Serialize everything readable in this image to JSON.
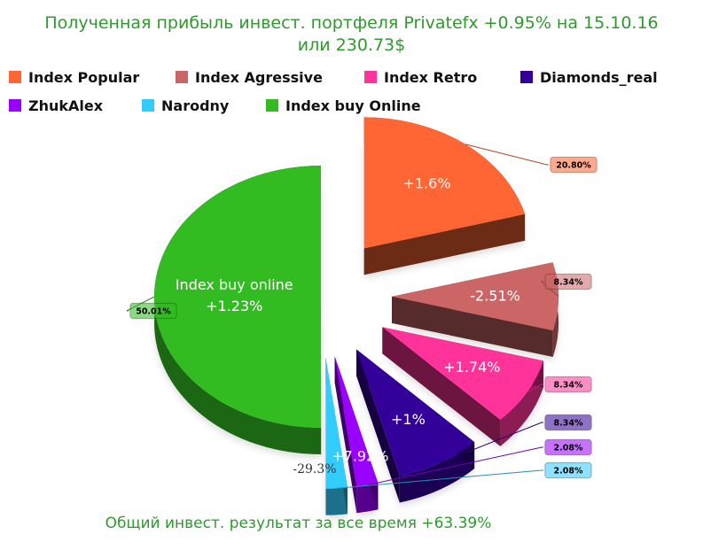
{
  "title_line1": "Полученная прибыль инвест. портфеля Privatefx +0.95% на 15.10.16",
  "title_line2": "или 230.73$",
  "footer": "Общий инвест. результат за все время +63.39%",
  "legend": [
    {
      "name": "Index Popular",
      "color": "#ff6633"
    },
    {
      "name": "Index Agressive",
      "color": "#cc6666"
    },
    {
      "name": "Index Retro",
      "color": "#ff3399"
    },
    {
      "name": "Diamonds_real",
      "color": "#330099"
    },
    {
      "name": "ZhukAlex",
      "color": "#9900ff"
    },
    {
      "name": "Narodny",
      "color": "#33ccff"
    },
    {
      "name": "Index buy Online",
      "color": "#33bb22"
    }
  ],
  "chart_data": {
    "type": "pie",
    "legend_position": "top",
    "slices": [
      {
        "name": "Index Popular",
        "share": 20.8,
        "label": "20.80%",
        "annotation": "+1.6%",
        "color": "#ff6633"
      },
      {
        "name": "Index Agressive",
        "share": 8.34,
        "label": "8.34%",
        "annotation": "-2.51%",
        "color": "#cc6666"
      },
      {
        "name": "Index Retro",
        "share": 8.34,
        "label": "8.34%",
        "annotation": "+1.74%",
        "color": "#ff3399"
      },
      {
        "name": "Diamonds_real",
        "share": 8.34,
        "label": "8.34%",
        "annotation": "+1%",
        "color": "#330099"
      },
      {
        "name": "ZhukAlex",
        "share": 2.08,
        "label": "2.08%",
        "annotation": "+7.92%",
        "color": "#9900ff"
      },
      {
        "name": "Narodny",
        "share": 2.08,
        "label": "2.08%",
        "annotation": "-29.3%",
        "color": "#33ccff"
      },
      {
        "name": "Index buy Online",
        "share": 50.01,
        "label": "50.01%",
        "annotation_line1": "Index buy online",
        "annotation_line2": "+1.23%",
        "color": "#33bb22"
      }
    ]
  }
}
